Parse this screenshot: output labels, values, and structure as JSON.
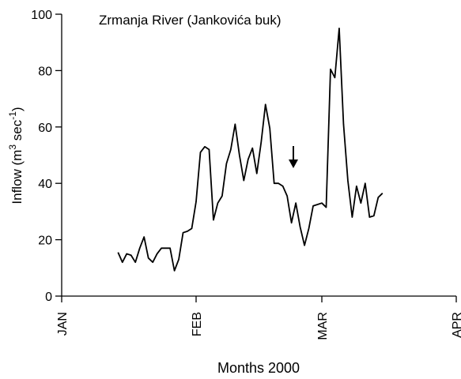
{
  "chart_data": {
    "type": "line",
    "title": "Zrmanja River (Jankovića buk)",
    "xlabel": "Months 2000",
    "ylabel_parts": [
      "Inflow (m",
      "3",
      " sec",
      "-1",
      ")"
    ],
    "x": [
      13,
      14,
      15,
      16,
      17,
      18,
      19,
      20,
      21,
      22,
      23,
      24,
      25,
      26,
      27,
      28,
      29,
      30,
      31,
      32,
      33,
      34,
      35,
      36,
      37,
      38,
      39,
      40,
      41,
      42,
      43,
      44,
      45,
      46,
      47,
      48,
      49,
      50,
      51,
      52,
      53,
      54,
      55,
      56,
      57,
      58,
      59,
      60,
      61,
      62,
      63,
      64,
      65,
      66,
      67,
      68,
      69,
      70,
      71,
      72,
      73,
      74
    ],
    "series": [
      {
        "name": "Inflow",
        "color": "#000000",
        "values": [
          15.5,
          12,
          15,
          14.5,
          12,
          17,
          21,
          13.5,
          12,
          15,
          17,
          17,
          17,
          9,
          13,
          22.5,
          23,
          24,
          33.5,
          51,
          53,
          52,
          27,
          33,
          35.5,
          47,
          52,
          61,
          50,
          41,
          48.5,
          52.5,
          43.5,
          54.5,
          68,
          59.5,
          40,
          40,
          39,
          35.5,
          26,
          33,
          24.5,
          18,
          24,
          32,
          32.5,
          33,
          31.5,
          80.5,
          77.5,
          95,
          61,
          41,
          28,
          39,
          33,
          40,
          28,
          28.5,
          35,
          36.5
        ]
      }
    ],
    "xlim": [
      0,
      91
    ],
    "xticks": [
      {
        "value": 0,
        "label": "JAN"
      },
      {
        "value": 31,
        "label": "FEB"
      },
      {
        "value": 60,
        "label": "MAR"
      },
      {
        "value": 91,
        "label": "APR"
      }
    ],
    "ylim": [
      0,
      100
    ],
    "yticks": [
      0,
      20,
      40,
      60,
      80,
      100
    ]
  }
}
